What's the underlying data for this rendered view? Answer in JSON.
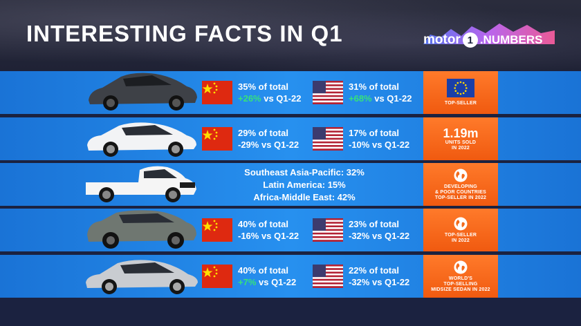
{
  "title": "INTERESTING FACTS IN Q1",
  "logo": {
    "left": "motor",
    "one": "1",
    "right": ".NUMBERS"
  },
  "colors": {
    "row_blue": "#1f86e6",
    "side_orange": "#f37220",
    "green": "#36e27a",
    "background": "#1b2240"
  },
  "rows": [
    {
      "car": "tesla-model-y-icon",
      "china": {
        "share": "35% of total",
        "change": "+26%",
        "suffix": " vs Q1-22",
        "positive": true
      },
      "usa": {
        "share": "31% of total",
        "change": "+68%",
        "suffix": " vs Q1-22",
        "positive": true
      },
      "side": {
        "icon": "eu-flag-icon",
        "line1": "TOP-SELLER"
      }
    },
    {
      "car": "toyota-corolla-icon",
      "china": {
        "share": "29% of total",
        "change": "-29% vs Q1-22"
      },
      "usa": {
        "share": "17% of total",
        "change": "-10% vs Q1-22"
      },
      "side": {
        "big": "1.19m",
        "line1": "UNITS SOLD",
        "line2": "IN 2022"
      }
    },
    {
      "car": "toyota-hilux-icon",
      "regions": [
        "Southeast Asia-Pacific: 32%",
        "Latin America: 15%",
        "Africa-Middle East: 42%"
      ],
      "side": {
        "icon": "globe-icon",
        "line1": "DEVELOPING",
        "line2": "& POOR COUNTRIES",
        "line3": "TOP-SELLER IN 2022"
      }
    },
    {
      "car": "toyota-rav4-icon",
      "china": {
        "share": "40% of total",
        "change": "-16% vs Q1-22"
      },
      "usa": {
        "share": "23% of total",
        "change": "-32% vs Q1-22"
      },
      "side": {
        "icon": "globe-icon",
        "line1": "TOP-SELLER",
        "line2": "IN 2022"
      }
    },
    {
      "car": "toyota-camry-icon",
      "china": {
        "share": "40% of total",
        "change": "+7%",
        "suffix": " vs Q1-22",
        "positive": true
      },
      "usa": {
        "share": "22% of total",
        "change": "-32% vs Q1-22"
      },
      "side": {
        "icon": "globe-icon",
        "line1": "WORLD'S",
        "line2": "TOP-SELLING",
        "line3": "MIDSIZE SEDAN IN 2022"
      }
    }
  ]
}
